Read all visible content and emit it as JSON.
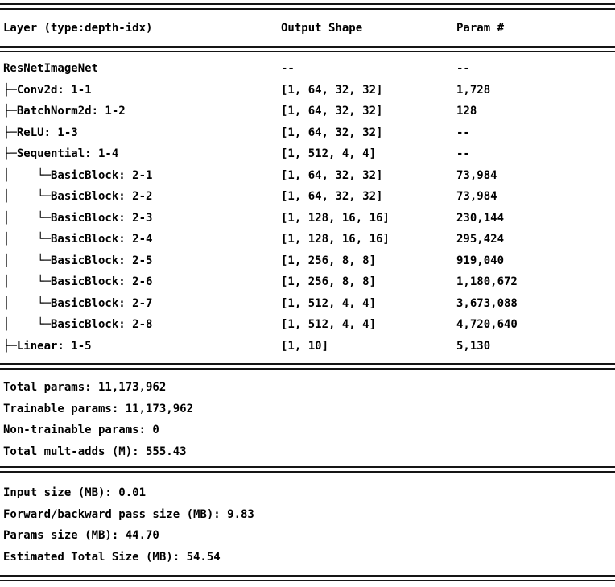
{
  "header": {
    "columns": [
      "Layer (type:depth-idx)",
      "Output Shape",
      "Param #"
    ]
  },
  "table": {
    "rows": [
      {
        "layer": "ResNetImageNet",
        "output_shape": "--",
        "param": "--"
      },
      {
        "layer": "├─Conv2d: 1-1",
        "output_shape": "[1, 64, 32, 32]",
        "param": "1,728"
      },
      {
        "layer": "├─BatchNorm2d: 1-2",
        "output_shape": "[1, 64, 32, 32]",
        "param": "128"
      },
      {
        "layer": "├─ReLU: 1-3",
        "output_shape": "[1, 64, 32, 32]",
        "param": "--"
      },
      {
        "layer": "├─Sequential: 1-4",
        "output_shape": "[1, 512, 4, 4]",
        "param": "--"
      },
      {
        "layer": "│    └─BasicBlock: 2-1",
        "output_shape": "[1, 64, 32, 32]",
        "param": "73,984"
      },
      {
        "layer": "│    └─BasicBlock: 2-2",
        "output_shape": "[1, 64, 32, 32]",
        "param": "73,984"
      },
      {
        "layer": "│    └─BasicBlock: 2-3",
        "output_shape": "[1, 128, 16, 16]",
        "param": "230,144"
      },
      {
        "layer": "│    └─BasicBlock: 2-4",
        "output_shape": "[1, 128, 16, 16]",
        "param": "295,424"
      },
      {
        "layer": "│    └─BasicBlock: 2-5",
        "output_shape": "[1, 256, 8, 8]",
        "param": "919,040"
      },
      {
        "layer": "│    └─BasicBlock: 2-6",
        "output_shape": "[1, 256, 8, 8]",
        "param": "1,180,672"
      },
      {
        "layer": "│    └─BasicBlock: 2-7",
        "output_shape": "[1, 512, 4, 4]",
        "param": "3,673,088"
      },
      {
        "layer": "│    └─BasicBlock: 2-8",
        "output_shape": "[1, 512, 4, 4]",
        "param": "4,720,640"
      },
      {
        "layer": "├─Linear: 1-5",
        "output_shape": "[1, 10]",
        "param": "5,130"
      }
    ]
  },
  "totals": {
    "lines": [
      {
        "text": "Total params: 11,173,962"
      },
      {
        "text": "Trainable params: 11,173,962"
      },
      {
        "text": "Non-trainable params: 0"
      },
      {
        "text": "Total mult-adds (M): 555.43"
      }
    ]
  },
  "sizes": {
    "lines": [
      {
        "text": "Input size (MB): 0.01"
      },
      {
        "text": "Forward/backward pass size (MB): 9.83"
      },
      {
        "text": "Params size (MB): 44.70"
      },
      {
        "text": "Estimated Total Size (MB): 54.54"
      }
    ]
  },
  "colors": {
    "text": "#000000",
    "background": "#ffffff",
    "rule": "#151515"
  }
}
